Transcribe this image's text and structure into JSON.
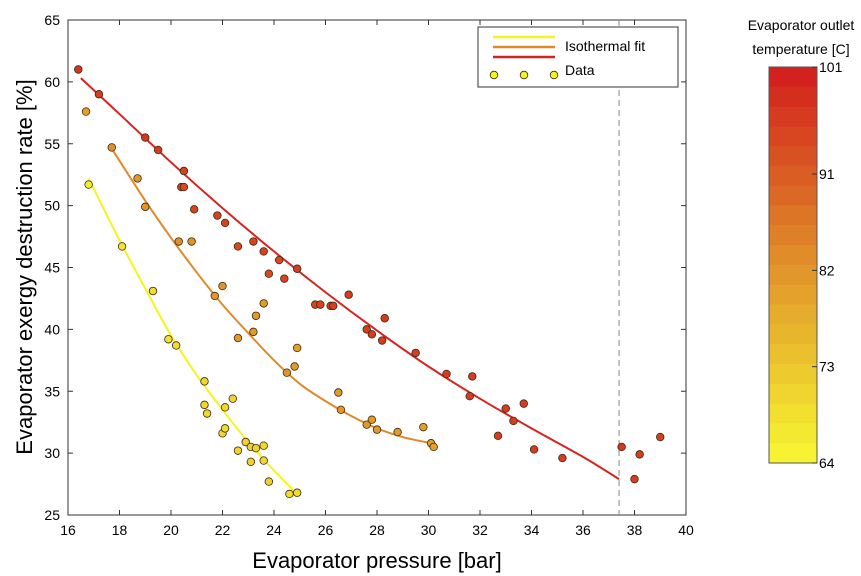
{
  "chart_data": {
    "type": "scatter",
    "xlabel": "Evaporator pressure [bar]",
    "ylabel": "Evaporator exergy destruction rate [%]",
    "xlim": [
      16,
      40
    ],
    "ylim": [
      25,
      65
    ],
    "xticks": [
      16,
      18,
      20,
      22,
      24,
      26,
      28,
      30,
      32,
      34,
      36,
      38,
      40
    ],
    "yticks": [
      25,
      30,
      35,
      40,
      45,
      50,
      55,
      60,
      65
    ],
    "grid": false,
    "legend_position": "top-right",
    "legend": [
      {
        "label": "Isothermal fit",
        "kind": "line",
        "color": "#f5f51e"
      },
      {
        "label": "",
        "kind": "line",
        "color": "#e0892a"
      },
      {
        "label": "",
        "kind": "line",
        "color": "#d42420"
      },
      {
        "label": "Data",
        "kind": "marker",
        "color": "#f5f51e"
      }
    ],
    "reference_line": {
      "x": 37.4,
      "style": "dashed",
      "color": "#888888"
    },
    "colorbar": {
      "title_lines": [
        "Evaporator outlet",
        "temperature [C]"
      ],
      "min": 64,
      "max": 101,
      "tick_labels": [
        "101",
        "91",
        "82",
        "73",
        "64"
      ],
      "tick_values": [
        101,
        91,
        82,
        73,
        64
      ],
      "steps": 20,
      "color_low": "#f8f832",
      "color_mid": "#e0922a",
      "color_high": "#d21c1c"
    },
    "series": [
      {
        "temperature": 68,
        "fit_color": "#f5f51e",
        "fit_curve": [
          [
            16.8,
            52.2
          ],
          [
            18,
            47.2
          ],
          [
            19,
            43.3
          ],
          [
            20,
            39.5
          ],
          [
            21,
            36.3
          ],
          [
            22,
            33.5
          ],
          [
            23,
            30.9
          ],
          [
            24,
            28.6
          ],
          [
            24.9,
            26.7
          ]
        ],
        "points": [
          [
            16.7,
            57.6,
            80
          ],
          [
            16.8,
            51.7,
            66
          ],
          [
            18.1,
            46.7,
            68
          ],
          [
            19.3,
            43.1,
            69
          ],
          [
            19.9,
            39.2,
            68
          ],
          [
            20.2,
            38.7,
            69
          ],
          [
            21.3,
            35.8,
            70
          ],
          [
            21.3,
            33.9,
            70
          ],
          [
            21.4,
            33.2,
            70
          ],
          [
            22.0,
            31.6,
            70
          ],
          [
            22.1,
            32.0,
            69
          ],
          [
            22.1,
            33.7,
            70
          ],
          [
            22.4,
            34.4,
            71
          ],
          [
            22.6,
            30.2,
            71
          ],
          [
            22.9,
            30.9,
            71
          ],
          [
            23.1,
            30.5,
            71
          ],
          [
            23.1,
            29.3,
            71
          ],
          [
            23.3,
            30.4,
            71
          ],
          [
            23.6,
            30.6,
            70
          ],
          [
            23.6,
            29.4,
            70
          ],
          [
            23.8,
            27.7,
            71
          ],
          [
            24.6,
            26.7,
            69
          ],
          [
            24.9,
            26.8,
            69
          ]
        ]
      },
      {
        "temperature": 82,
        "fit_color": "#e0892a",
        "fit_curve": [
          [
            17.7,
            54.6
          ],
          [
            19,
            50.4
          ],
          [
            20,
            47.4
          ],
          [
            21,
            44.6
          ],
          [
            22,
            42.0
          ],
          [
            23,
            39.7
          ],
          [
            24,
            37.5
          ],
          [
            25,
            35.6
          ],
          [
            26,
            34.2
          ],
          [
            27,
            33.0
          ],
          [
            28,
            32.0
          ],
          [
            29,
            31.3
          ],
          [
            30.1,
            30.8
          ]
        ],
        "points": [
          [
            17.7,
            54.7,
            83
          ],
          [
            18.7,
            52.2,
            82
          ],
          [
            19.0,
            49.9,
            82
          ],
          [
            20.3,
            47.1,
            83
          ],
          [
            20.8,
            47.1,
            82
          ],
          [
            21.7,
            42.7,
            82
          ],
          [
            22.0,
            43.5,
            82
          ],
          [
            22.6,
            39.3,
            82
          ],
          [
            23.2,
            39.8,
            81
          ],
          [
            23.3,
            41.1,
            81
          ],
          [
            23.6,
            42.1,
            81
          ],
          [
            24.5,
            36.5,
            82
          ],
          [
            24.8,
            37.0,
            81
          ],
          [
            24.9,
            38.5,
            80
          ],
          [
            26.5,
            34.9,
            81
          ],
          [
            26.6,
            33.5,
            82
          ],
          [
            27.6,
            32.3,
            82
          ],
          [
            27.8,
            32.7,
            81
          ],
          [
            28.0,
            31.9,
            81
          ],
          [
            28.8,
            31.7,
            81
          ],
          [
            29.8,
            32.1,
            80
          ],
          [
            30.1,
            30.8,
            80
          ],
          [
            30.2,
            30.5,
            80
          ]
        ]
      },
      {
        "temperature": 96,
        "fit_color": "#d42420",
        "fit_curve": [
          [
            16.5,
            60.3
          ],
          [
            18,
            57.4
          ],
          [
            20,
            53.5
          ],
          [
            22,
            49.8
          ],
          [
            24,
            46.3
          ],
          [
            26,
            43.0
          ],
          [
            28,
            39.9
          ],
          [
            30,
            37.0
          ],
          [
            32,
            34.4
          ],
          [
            34,
            32.0
          ],
          [
            36,
            29.7
          ],
          [
            37.4,
            27.9
          ]
        ],
        "points": [
          [
            16.4,
            61.0,
            97
          ],
          [
            17.2,
            59.0,
            96
          ],
          [
            19.0,
            55.5,
            97
          ],
          [
            19.5,
            54.5,
            96
          ],
          [
            20.5,
            52.8,
            95
          ],
          [
            20.4,
            51.5,
            95
          ],
          [
            20.5,
            51.5,
            94
          ],
          [
            20.9,
            49.7,
            95
          ],
          [
            21.8,
            49.2,
            95
          ],
          [
            22.1,
            48.6,
            95
          ],
          [
            22.6,
            46.7,
            94
          ],
          [
            23.2,
            47.1,
            95
          ],
          [
            23.6,
            46.3,
            95
          ],
          [
            23.8,
            44.5,
            94
          ],
          [
            24.2,
            45.6,
            94
          ],
          [
            24.4,
            44.1,
            95
          ],
          [
            24.9,
            44.9,
            96
          ],
          [
            25.6,
            42.0,
            95
          ],
          [
            25.8,
            42.0,
            95
          ],
          [
            26.2,
            41.9,
            95
          ],
          [
            26.3,
            41.9,
            96
          ],
          [
            26.9,
            42.8,
            96
          ],
          [
            27.6,
            40.0,
            96
          ],
          [
            27.8,
            39.6,
            96
          ],
          [
            28.2,
            39.1,
            96
          ],
          [
            28.3,
            40.9,
            96
          ],
          [
            29.5,
            38.1,
            96
          ],
          [
            30.7,
            36.4,
            96
          ],
          [
            31.6,
            34.6,
            96
          ],
          [
            31.7,
            36.2,
            96
          ],
          [
            32.7,
            31.4,
            96
          ],
          [
            33.0,
            33.6,
            96
          ],
          [
            33.3,
            32.6,
            96
          ],
          [
            33.7,
            34.0,
            96
          ],
          [
            34.1,
            30.3,
            96
          ],
          [
            35.2,
            29.6,
            96
          ],
          [
            37.5,
            30.5,
            97
          ],
          [
            38.0,
            27.9,
            96
          ],
          [
            38.2,
            29.9,
            96
          ],
          [
            39.0,
            31.3,
            96
          ]
        ]
      }
    ]
  }
}
